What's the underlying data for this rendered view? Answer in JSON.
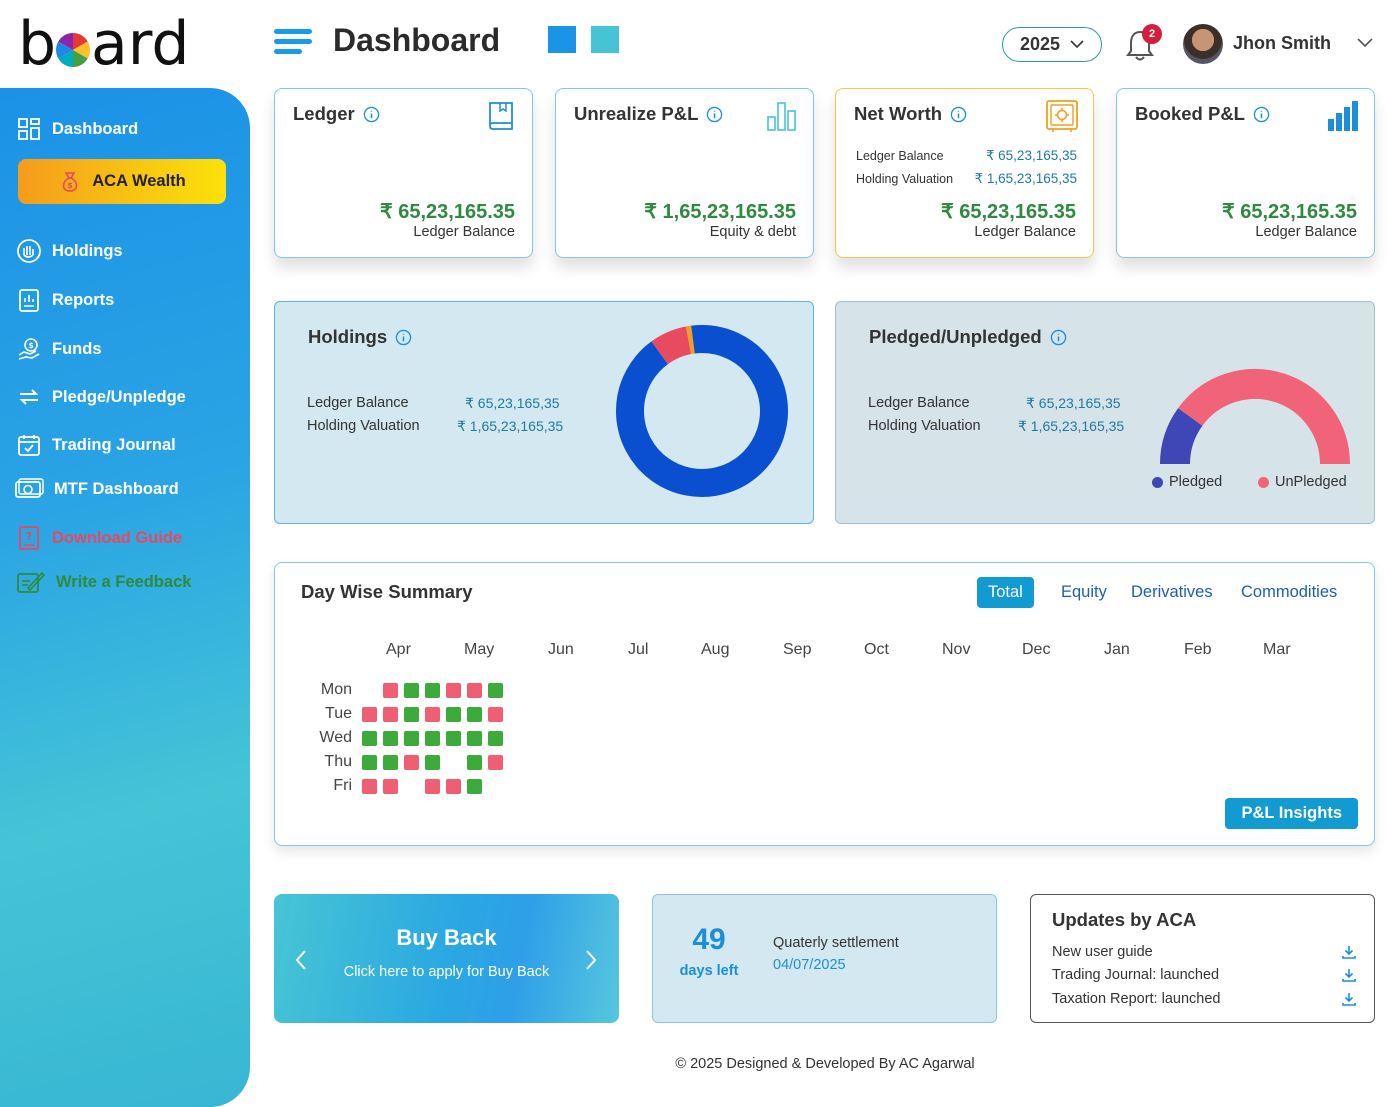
{
  "logo": {
    "text_before": "b",
    "text_after": "ard",
    "alt": "board"
  },
  "header": {
    "title": "Dashboard",
    "year": "2025",
    "notifications_count": "2",
    "user_name": "Jhon Smith"
  },
  "sidebar": {
    "items": [
      {
        "label": "Dashboard",
        "icon": "grid-icon"
      },
      {
        "label": "ACA Wealth",
        "icon": "money-bag-icon"
      },
      {
        "label": "Holdings",
        "icon": "hand-coin-icon"
      },
      {
        "label": "Reports",
        "icon": "report-icon"
      },
      {
        "label": "Funds",
        "icon": "funds-icon"
      },
      {
        "label": "Pledge/Unpledge",
        "icon": "swap-icon"
      },
      {
        "label": "Trading Journal",
        "icon": "calendar-check-icon"
      },
      {
        "label": "MTF Dashboard",
        "icon": "cash-icon"
      },
      {
        "label": "Download Guide",
        "icon": "help-doc-icon"
      },
      {
        "label": "Write a Feedback",
        "icon": "feedback-icon"
      }
    ],
    "colors": {
      "download_guide": "#e8495f",
      "feedback": "#2e8b3a"
    }
  },
  "cards": {
    "ledger": {
      "title": "Ledger",
      "value": "₹ 65,23,165.35",
      "label": "Ledger Balance",
      "icon": "book-icon"
    },
    "unrealized": {
      "title": "Unrealize P&L",
      "value": "₹ 1,65,23,165.35",
      "label": "Equity & debt",
      "icon": "bar-chart-outline-icon"
    },
    "networth": {
      "title": "Net Worth",
      "row1_label": "Ledger Balance",
      "row1_value": "₹ 65,23,165,35",
      "row2_label": "Holding Valuation",
      "row2_value": "₹ 1,65,23,165,35",
      "value": "₹ 65,23,165.35",
      "label": "Ledger Balance",
      "icon": "safe-icon"
    },
    "booked": {
      "title": "Booked P&L",
      "value": "₹ 65,23,165.35",
      "label": "Ledger Balance",
      "icon": "bar-chart-filled-icon"
    }
  },
  "holdings_panel": {
    "title": "Holdings",
    "row1_label": "Ledger Balance",
    "row1_value": "₹ 65,23,165,35",
    "row2_label": "Holding Valuation",
    "row2_value": "₹ 1,65,23,165,35",
    "donut": [
      {
        "share": 0.9,
        "color": "#0a4fcf"
      },
      {
        "share": 0.07,
        "color": "#e84a5f"
      },
      {
        "share": 0.01,
        "color": "#f0a020"
      },
      {
        "share": 0.02,
        "color": "#0a4fcf"
      }
    ]
  },
  "pledged_panel": {
    "title": "Pledged/Unpledged",
    "row1_label": "Ledger Balance",
    "row1_value": "₹ 65,23,165,35",
    "row2_label": "Holding Valuation",
    "row2_value": "₹ 1,65,23,165,35",
    "gauge": {
      "pledged_share": 0.2,
      "pledged_color": "#3e47b5",
      "unpledged_color": "#f06378"
    },
    "legend": {
      "pledged": "Pledged",
      "unpledged": "UnPledged"
    }
  },
  "summary": {
    "title": "Day Wise Summary",
    "tabs": [
      "Total",
      "Equity",
      "Derivatives",
      "Commodities"
    ],
    "active_tab": "Total",
    "months": [
      "Apr",
      "May",
      "Jun",
      "Jul",
      "Aug",
      "Sep",
      "Oct",
      "Nov",
      "Dec",
      "Jan",
      "Feb",
      "Mar"
    ],
    "days": [
      "Mon",
      "Tue",
      "Wed",
      "Thu",
      "Fri"
    ],
    "grid": [
      [
        null,
        "loss",
        "profit",
        "profit",
        "loss",
        "loss",
        "profit"
      ],
      [
        "loss",
        "loss",
        "profit",
        "loss",
        "profit",
        "profit",
        "loss"
      ],
      [
        "profit",
        "profit",
        "profit",
        "profit",
        "profit",
        "profit",
        "profit"
      ],
      [
        "profit",
        "profit",
        "loss",
        "profit",
        null,
        "profit",
        "loss"
      ],
      [
        "loss",
        "loss",
        null,
        "loss",
        "loss",
        "profit",
        null
      ]
    ],
    "colors": {
      "profit": "#3cab3c",
      "loss": "#ef5f74"
    },
    "insights_label": "P&L Insights"
  },
  "buyback": {
    "title": "Buy Back",
    "subtitle": "Click here to apply for Buy Back"
  },
  "settlement": {
    "days": "49",
    "days_label": "days left",
    "title": "Quaterly settlement",
    "date": "04/07/2025"
  },
  "updates": {
    "title": "Updates by ACA",
    "items": [
      "New user guide",
      "Trading Journal: launched",
      "Taxation Report: launched"
    ]
  },
  "footer": {
    "text": "© 2025 Designed & Developed By AC Agarwal"
  }
}
